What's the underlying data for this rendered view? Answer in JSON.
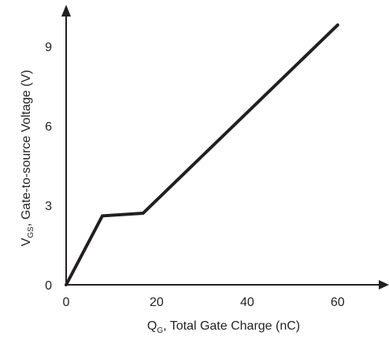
{
  "chart_data": {
    "type": "line",
    "title": "",
    "xlabel": {
      "main": "Q",
      "sub": "G",
      "rest": ", Total Gate Charge (nC)"
    },
    "ylabel": {
      "main": "V",
      "sub": "GS",
      "rest": ", Gate-to-source Voltage (V)"
    },
    "xlim": [
      0,
      67
    ],
    "ylim": [
      0,
      10.3
    ],
    "xticks": [
      0,
      20,
      40,
      60
    ],
    "yticks": [
      0,
      3,
      6,
      9
    ],
    "grid": false,
    "legend": "none",
    "line_color": "#231f20",
    "series": [
      {
        "x": [
          0,
          8,
          17,
          60
        ],
        "y": [
          0,
          2.6,
          2.7,
          9.8
        ]
      }
    ]
  }
}
